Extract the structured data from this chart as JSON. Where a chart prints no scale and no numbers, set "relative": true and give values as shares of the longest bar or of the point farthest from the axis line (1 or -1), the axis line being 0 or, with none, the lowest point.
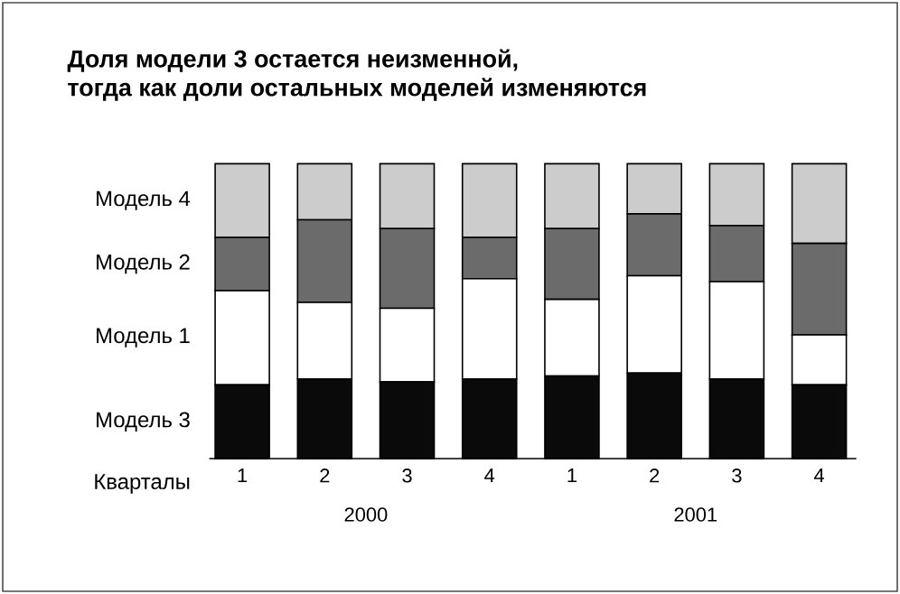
{
  "chart_data": {
    "type": "bar",
    "stacked": true,
    "relative": true,
    "title": "Доля модели 3 остается неизменной,\nтогда как доли остальных моделей изменяются",
    "xlabel": "Кварталы",
    "categories": [
      "1",
      "2",
      "3",
      "4",
      "1",
      "2",
      "3",
      "4"
    ],
    "series": [
      {
        "name": "Модель 3",
        "color": "#0a0a0a",
        "values": [
          0.25,
          0.27,
          0.26,
          0.27,
          0.28,
          0.29,
          0.27,
          0.25
        ]
      },
      {
        "name": "Модель 1",
        "color": "#ffffff",
        "values": [
          0.32,
          0.26,
          0.25,
          0.34,
          0.26,
          0.33,
          0.33,
          0.17
        ]
      },
      {
        "name": "Модель 2",
        "color": "#6b6b6b",
        "values": [
          0.18,
          0.28,
          0.27,
          0.14,
          0.24,
          0.21,
          0.19,
          0.31
        ]
      },
      {
        "name": "Модель 4",
        "color": "#cccccc",
        "values": [
          0.25,
          0.19,
          0.22,
          0.25,
          0.22,
          0.17,
          0.21,
          0.27
        ]
      }
    ],
    "annotations": [
      "2000",
      "2001"
    ]
  }
}
